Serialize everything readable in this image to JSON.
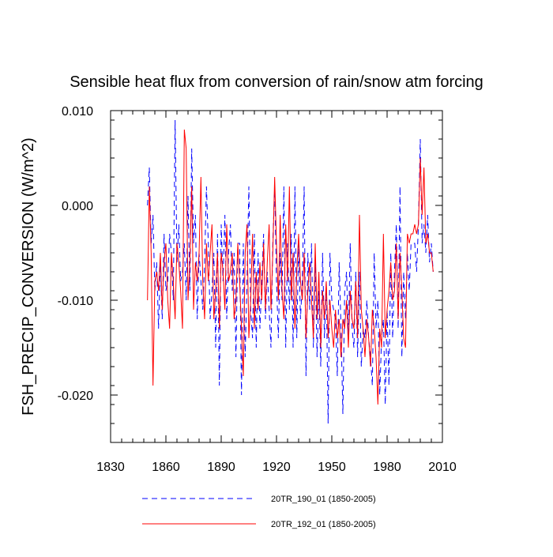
{
  "chart_data": {
    "type": "line",
    "title": "Sensible heat flux from conversion of rain/snow atm forcing",
    "xlabel": "",
    "ylabel": "FSH_PRECIP_CONVERSION  (W/m^2)",
    "xlim": [
      1830,
      2010
    ],
    "ylim": [
      -0.025,
      0.01
    ],
    "x_ticks": [
      1830,
      1860,
      1890,
      1920,
      1950,
      1980,
      2010
    ],
    "x_tick_labels": [
      "1830",
      "1860",
      "1890",
      "1920",
      "1950",
      "1980",
      "2010"
    ],
    "y_ticks": [
      -0.02,
      -0.01,
      0.0,
      0.01
    ],
    "y_tick_labels": [
      "-0.020",
      "-0.010",
      "0.000",
      "0.010"
    ],
    "x_start": 1850,
    "x_step": 1,
    "series": [
      {
        "name": "20TR_190_01 (1850-2005)",
        "color": "#0000ff",
        "dash": "dashed",
        "values": [
          0.0,
          0.004,
          -0.004,
          -0.001,
          -0.009,
          -0.006,
          -0.013,
          -0.006,
          -0.012,
          -0.003,
          -0.009,
          -0.008,
          -0.003,
          -0.005,
          -0.01,
          0.009,
          -0.006,
          -0.002,
          -0.008,
          -0.007,
          -0.004,
          -0.01,
          0.001,
          -0.009,
          0.006,
          -0.004,
          -0.001,
          -0.012,
          -0.005,
          -0.008,
          -0.011,
          -0.006,
          0.002,
          -0.004,
          -0.012,
          -0.009,
          -0.005,
          -0.015,
          -0.003,
          -0.019,
          -0.002,
          -0.008,
          -0.001,
          -0.012,
          -0.005,
          -0.002,
          -0.009,
          -0.005,
          -0.016,
          -0.004,
          -0.004,
          -0.02,
          -0.004,
          -0.016,
          -0.008,
          0.002,
          -0.011,
          -0.014,
          -0.003,
          -0.015,
          -0.005,
          -0.013,
          -0.008,
          -0.003,
          -0.012,
          -0.007,
          -0.011,
          -0.015,
          -0.004,
          0.002,
          -0.008,
          -0.014,
          -0.005,
          -0.01,
          0.002,
          -0.015,
          -0.004,
          -0.011,
          -0.003,
          -0.015,
          0.002,
          -0.014,
          -0.004,
          -0.012,
          -0.008,
          0.002,
          -0.018,
          -0.005,
          -0.011,
          -0.004,
          -0.015,
          -0.006,
          -0.016,
          -0.009,
          -0.017,
          -0.005,
          -0.014,
          -0.008,
          -0.023,
          -0.005,
          -0.01,
          -0.011,
          -0.012,
          -0.018,
          -0.006,
          -0.013,
          -0.022,
          -0.009,
          -0.007,
          -0.014,
          -0.004,
          -0.013,
          -0.015,
          -0.007,
          -0.016,
          -0.007,
          -0.017,
          -0.013,
          -0.014,
          -0.01,
          -0.014,
          -0.016,
          -0.019,
          -0.005,
          -0.013,
          -0.01,
          -0.02,
          -0.014,
          -0.012,
          -0.021,
          -0.011,
          -0.019,
          -0.005,
          -0.014,
          -0.007,
          -0.002,
          -0.013,
          0.002,
          -0.016,
          -0.007,
          -0.012,
          -0.005,
          -0.009,
          -0.004,
          -0.004,
          -0.004,
          -0.007,
          -0.002,
          0.007,
          -0.004,
          -0.002,
          -0.005,
          -0.001,
          -0.006,
          -0.004,
          -0.007
        ]
      },
      {
        "name": "20TR_192_01 (1850-2005)",
        "color": "#ff0000",
        "dash": "solid",
        "values": [
          -0.01,
          0.002,
          -0.005,
          -0.019,
          -0.008,
          -0.007,
          -0.009,
          -0.005,
          -0.011,
          -0.006,
          -0.004,
          -0.01,
          -0.013,
          -0.005,
          -0.008,
          -0.012,
          -0.004,
          -0.006,
          -0.009,
          -0.013,
          0.008,
          0.006,
          -0.01,
          -0.006,
          0.002,
          -0.011,
          -0.006,
          -0.008,
          -0.005,
          0.003,
          -0.008,
          -0.012,
          -0.004,
          -0.008,
          -0.005,
          -0.002,
          -0.012,
          -0.009,
          -0.005,
          -0.013,
          -0.005,
          -0.007,
          -0.011,
          -0.002,
          -0.008,
          -0.007,
          -0.005,
          -0.012,
          -0.01,
          -0.004,
          -0.008,
          -0.013,
          -0.018,
          -0.005,
          -0.002,
          -0.014,
          -0.01,
          -0.003,
          -0.013,
          -0.007,
          -0.011,
          -0.006,
          -0.01,
          -0.004,
          -0.011,
          -0.006,
          -0.002,
          -0.011,
          -0.005,
          0.003,
          -0.004,
          -0.01,
          -0.001,
          -0.009,
          -0.012,
          -0.002,
          -0.008,
          0.002,
          -0.01,
          -0.005,
          -0.013,
          -0.007,
          -0.003,
          -0.008,
          -0.01,
          -0.005,
          -0.014,
          -0.009,
          -0.006,
          -0.01,
          -0.014,
          -0.004,
          -0.012,
          -0.007,
          -0.015,
          -0.009,
          -0.012,
          -0.008,
          -0.014,
          -0.01,
          -0.013,
          -0.015,
          -0.011,
          -0.014,
          -0.012,
          -0.016,
          -0.012,
          -0.013,
          -0.01,
          -0.015,
          -0.009,
          -0.012,
          -0.013,
          -0.008,
          -0.014,
          -0.001,
          -0.011,
          -0.013,
          -0.016,
          -0.012,
          -0.014,
          -0.017,
          -0.011,
          -0.013,
          -0.016,
          -0.021,
          -0.013,
          -0.015,
          -0.003,
          -0.014,
          -0.011,
          -0.009,
          -0.006,
          -0.01,
          -0.009,
          -0.004,
          -0.012,
          -0.005,
          -0.009,
          -0.014,
          -0.015,
          -0.003,
          -0.004,
          -0.003,
          -0.003,
          -0.002,
          -0.003,
          -0.002,
          0.005,
          -0.001,
          0.004,
          -0.004,
          -0.003,
          -0.005,
          -0.005,
          -0.007
        ]
      }
    ]
  }
}
